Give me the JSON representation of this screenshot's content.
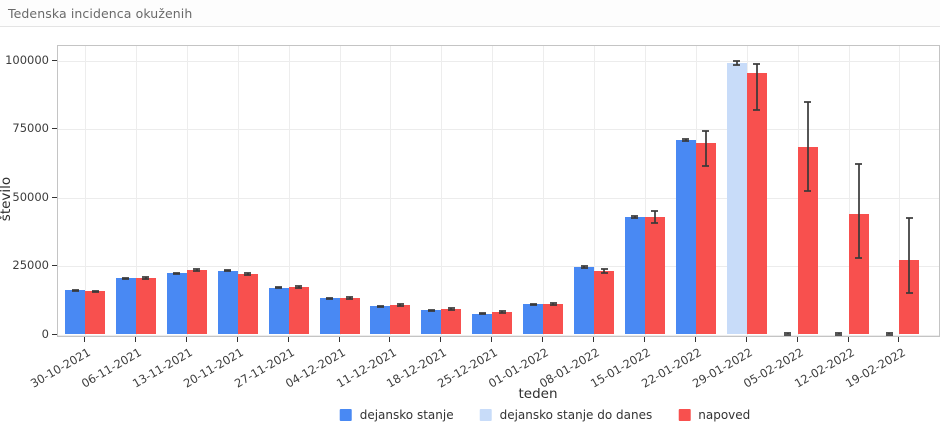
{
  "header": {
    "title": "Tedenska incidenca okuženih"
  },
  "colors": {
    "actual": "#4989F3",
    "actual_to_date": "#C8DCF9",
    "forecast": "#F8504E",
    "error_bar": "#383838",
    "gridline": "#ececec",
    "panel_border": "#c4c4c4"
  },
  "chart_data": {
    "type": "bar",
    "title": "Tedenska incidenca okuženih",
    "xlabel": "teden",
    "ylabel": "število",
    "ylim": [
      0,
      100000
    ],
    "yticks": [
      0,
      25000,
      50000,
      75000,
      100000
    ],
    "ytick_labels": [
      "0",
      "25000",
      "50000",
      "75000",
      "100000"
    ],
    "grid": true,
    "legend_position": "bottom",
    "categories": [
      "30-10-2021",
      "06-11-2021",
      "13-11-2021",
      "20-11-2021",
      "27-11-2021",
      "04-12-2021",
      "11-12-2021",
      "18-12-2021",
      "25-12-2021",
      "01-01-2022",
      "08-01-2022",
      "15-01-2022",
      "22-01-2022",
      "29-01-2022",
      "05-02-2022",
      "12-02-2022",
      "19-02-2022"
    ],
    "series": [
      {
        "name": "dejansko stanje",
        "color": "#4989F3",
        "values": [
          16100,
          20500,
          22400,
          23200,
          17100,
          13200,
          10300,
          8800,
          7600,
          11000,
          24700,
          42800,
          70900,
          null,
          0,
          0,
          0
        ],
        "err_lo": [
          15900,
          20300,
          22200,
          23000,
          16900,
          13000,
          10100,
          8600,
          7400,
          10800,
          24400,
          42500,
          70500,
          null,
          0,
          0,
          0
        ],
        "err_hi": [
          16300,
          20700,
          22600,
          23400,
          17300,
          13400,
          10500,
          9000,
          7800,
          11200,
          25000,
          43100,
          71300,
          null,
          600,
          600,
          600
        ]
      },
      {
        "name": "dejansko stanje do danes",
        "color": "#C8DCF9",
        "values": [
          null,
          null,
          null,
          null,
          null,
          null,
          null,
          null,
          null,
          null,
          null,
          null,
          null,
          99000,
          null,
          null,
          null
        ],
        "err_lo": [
          null,
          null,
          null,
          null,
          null,
          null,
          null,
          null,
          null,
          null,
          null,
          null,
          null,
          98300,
          null,
          null,
          null
        ],
        "err_hi": [
          null,
          null,
          null,
          null,
          null,
          null,
          null,
          null,
          null,
          null,
          null,
          null,
          null,
          99800,
          null,
          null,
          null
        ]
      },
      {
        "name": "napoved",
        "color": "#F8504E",
        "values": [
          15700,
          20700,
          23500,
          22100,
          17400,
          13300,
          10800,
          9300,
          8300,
          11100,
          23300,
          43000,
          69800,
          95300,
          68400,
          44000,
          27200
        ],
        "err_lo": [
          15400,
          20400,
          23100,
          21800,
          17000,
          13000,
          10500,
          9000,
          8000,
          10800,
          22600,
          40800,
          61500,
          81900,
          52300,
          27900,
          15200
        ],
        "err_hi": [
          16000,
          21000,
          23900,
          22400,
          17800,
          13600,
          11100,
          9600,
          8600,
          11400,
          24000,
          45100,
          74300,
          98600,
          84900,
          62200,
          42500
        ]
      }
    ]
  },
  "legend": {
    "items": [
      {
        "label": "dejansko stanje",
        "color": "#4989F3"
      },
      {
        "label": "dejansko stanje do danes",
        "color": "#C8DCF9"
      },
      {
        "label": "napoved",
        "color": "#F8504E"
      }
    ]
  }
}
